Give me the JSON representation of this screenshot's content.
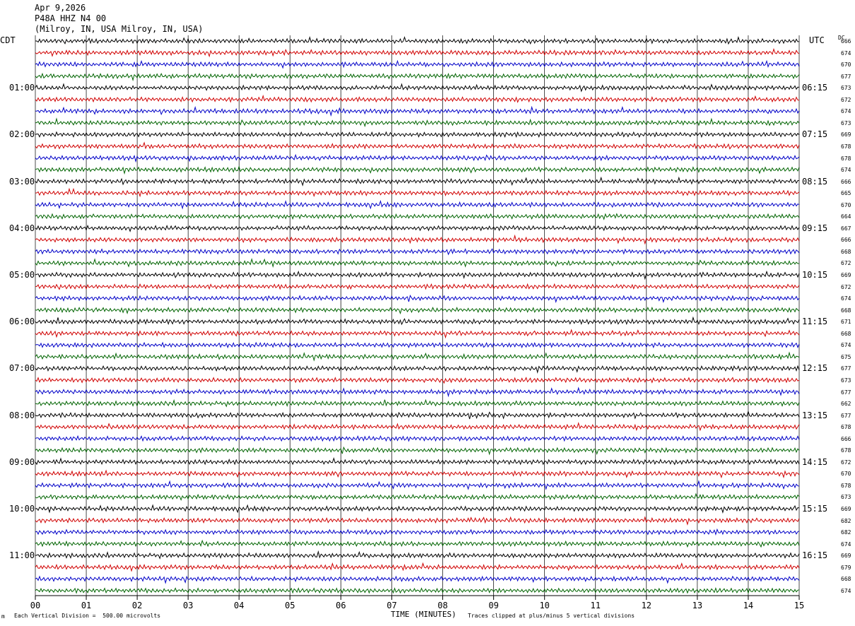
{
  "header": {
    "date": "Apr 9,2026",
    "station": "P48A HHZ N4 00",
    "location": "(Milroy, IN, USA Milroy, IN, USA)"
  },
  "left_axis_label": "CDT",
  "right_axis_label": "UTC",
  "dc_label": "DC",
  "footer": {
    "scale_note": "Each Vertical Division =  500.00 microvolts",
    "xlabel": "TIME (MINUTES)",
    "clip_note": "Traces clipped at plus/minus 5 vertical divisions",
    "corner_mark": "m"
  },
  "chart_data": {
    "type": "line",
    "x_range": [
      0,
      15
    ],
    "x_ticks": [
      "00",
      "01",
      "02",
      "03",
      "04",
      "05",
      "06",
      "07",
      "08",
      "09",
      "10",
      "11",
      "12",
      "13",
      "14",
      "15"
    ],
    "grid": "vertical",
    "trace_colors": [
      "#000000",
      "#d00000",
      "#0000c8",
      "#006400"
    ],
    "row_count": 48,
    "left_time_labels": [
      "01:00",
      "02:00",
      "03:00",
      "04:00",
      "05:00",
      "06:00",
      "07:00",
      "08:00",
      "09:00",
      "10:00",
      "11:00"
    ],
    "right_time_labels": [
      "06:15",
      "07:15",
      "08:15",
      "09:15",
      "10:15",
      "11:15",
      "12:15",
      "13:15",
      "14:15",
      "15:15",
      "16:15"
    ],
    "dc_offsets": [
      666,
      674,
      670,
      677,
      673,
      672,
      674,
      673,
      669,
      678,
      678,
      674,
      666,
      665,
      670,
      664,
      667,
      666,
      668,
      672,
      669,
      672,
      674,
      668,
      671,
      668,
      674,
      675,
      677,
      673,
      677,
      662,
      677,
      678,
      666,
      678,
      672,
      670,
      678,
      673,
      669,
      682,
      682,
      674,
      669,
      679,
      668,
      674
    ]
  }
}
